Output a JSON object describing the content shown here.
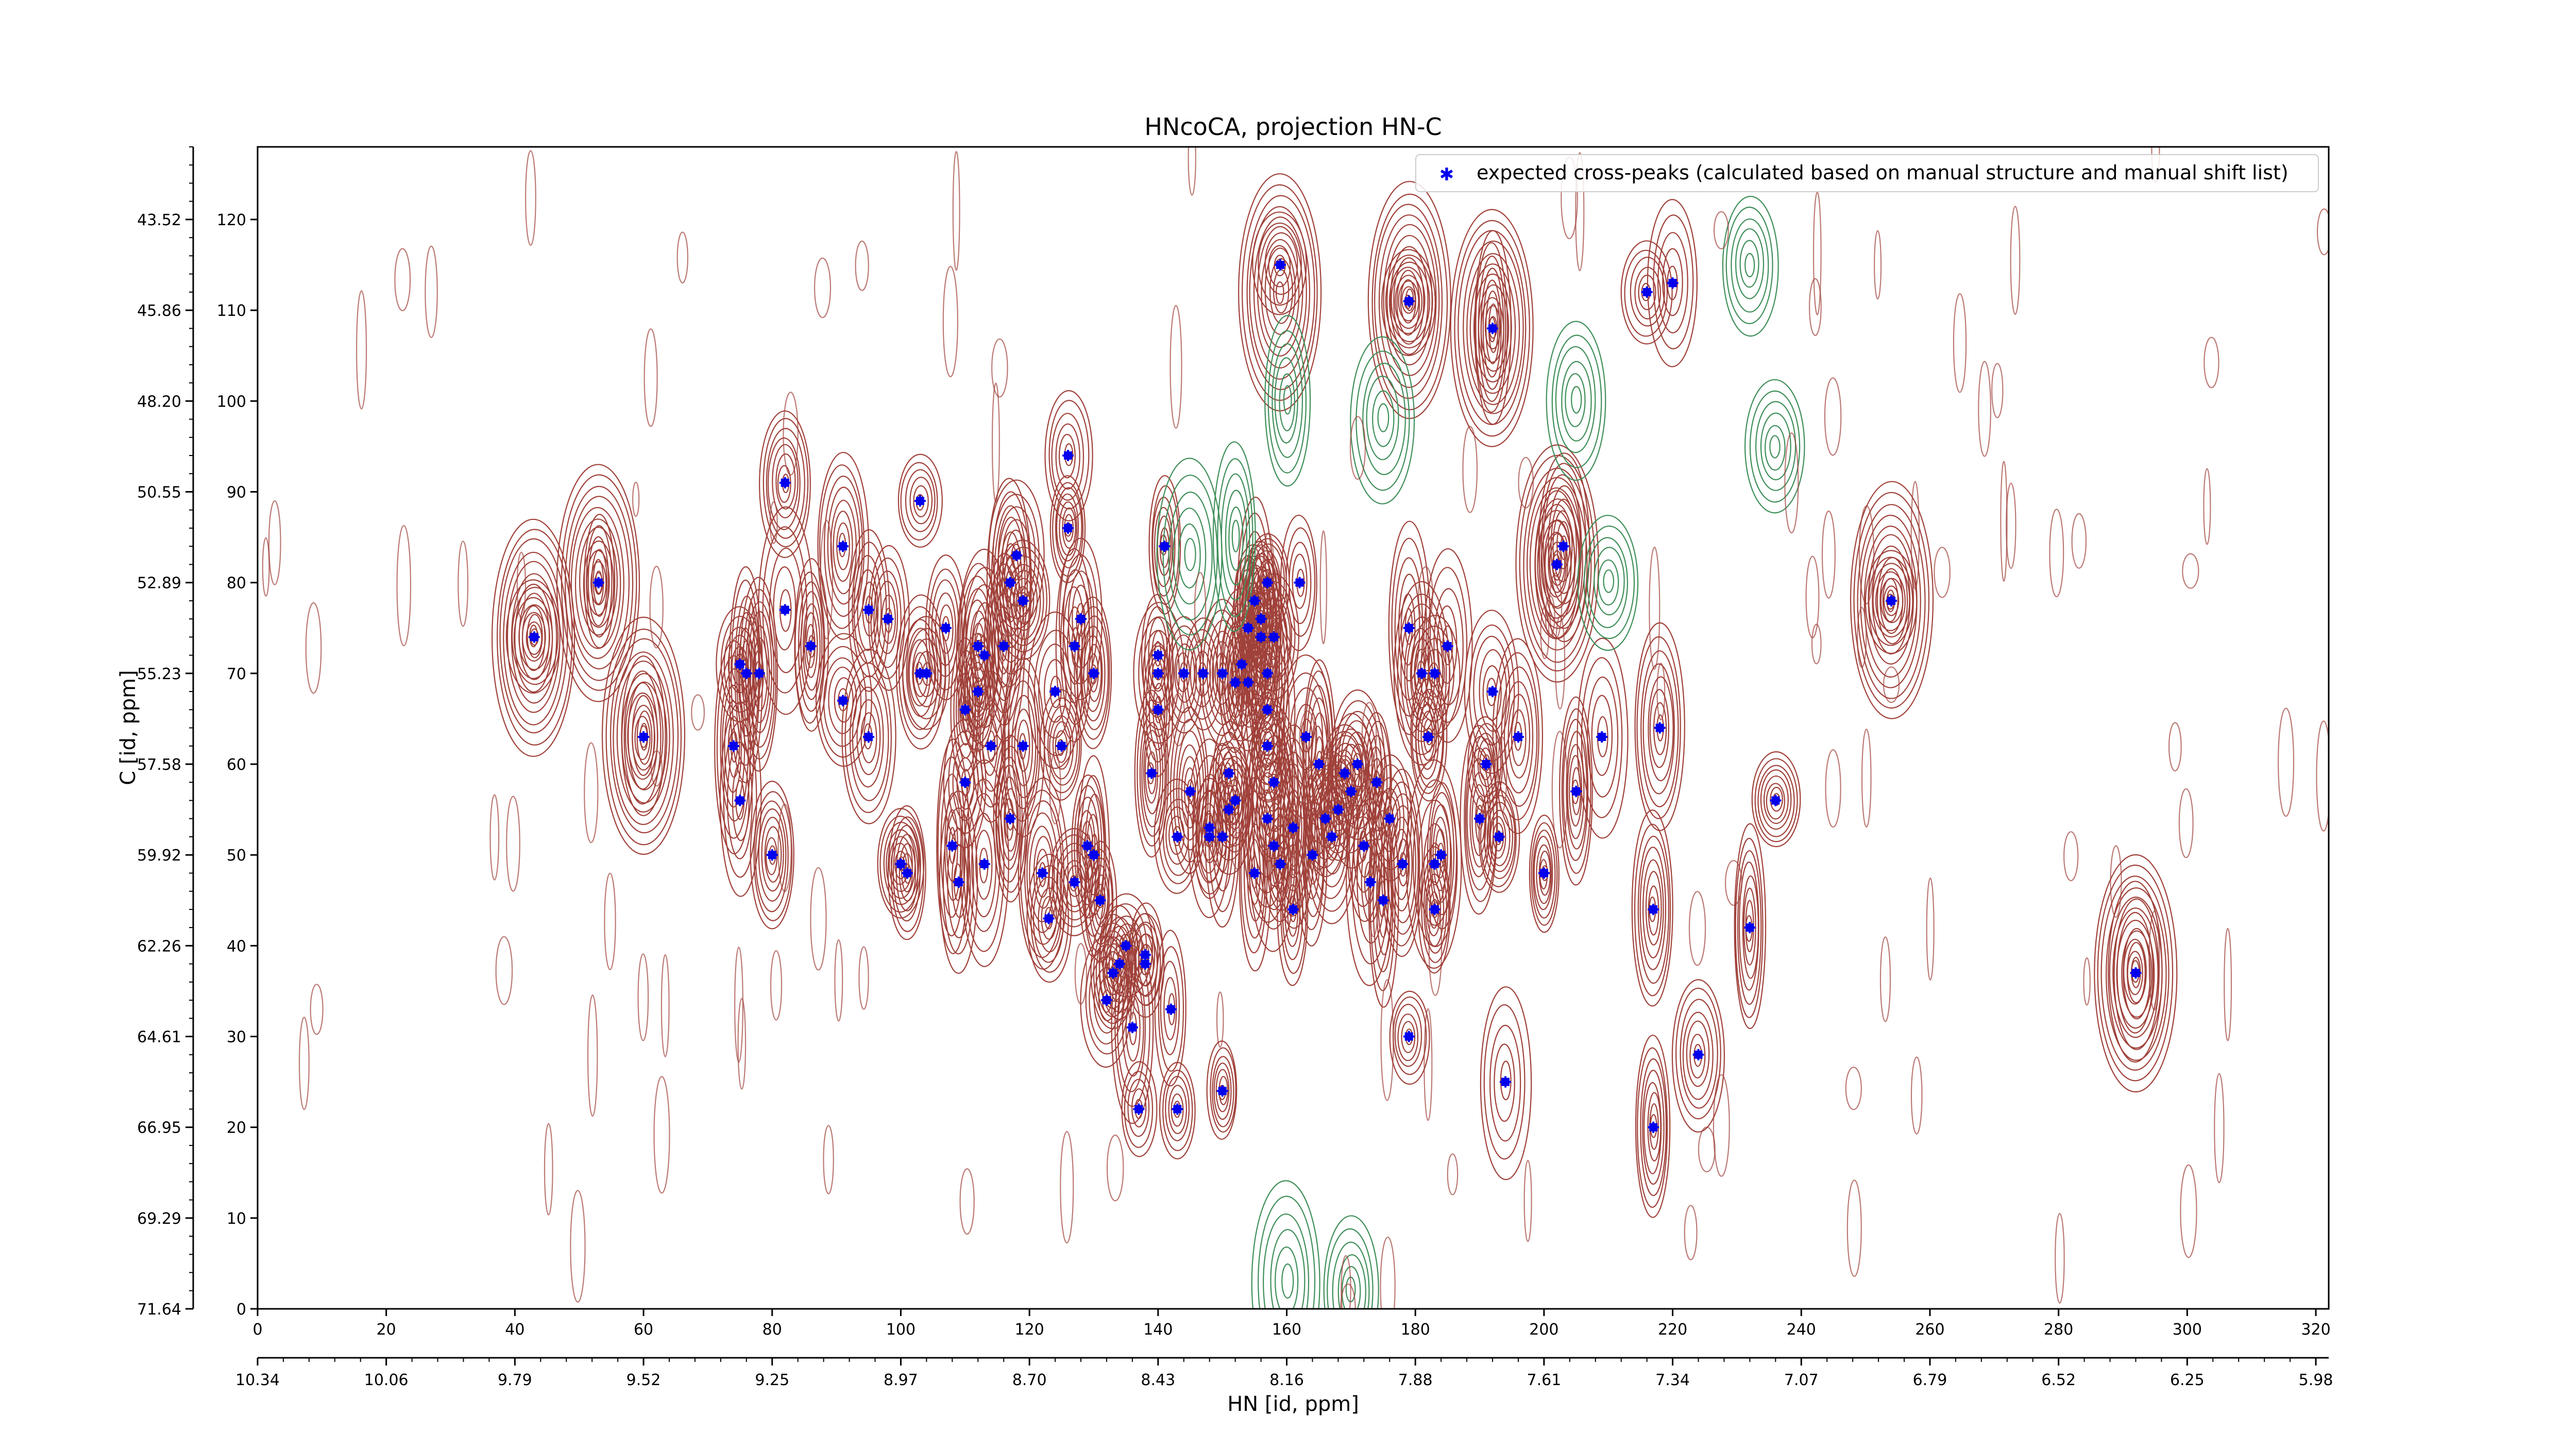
{
  "chart_data": {
    "type": "scatter",
    "title": "HNcoCA, projection HN-C",
    "legend": {
      "placement": "top-right",
      "entries": [
        "expected cross-peaks (calculated based on manual structure and manual shift list)"
      ]
    },
    "colors": {
      "marker": "#0000ee",
      "positive_contours": "#a0413a",
      "negative_contours": "#3f8f5a"
    },
    "x_axis": {
      "label": "HN [id, ppm]",
      "range": [
        0,
        322
      ],
      "ticks": [
        0,
        20,
        40,
        60,
        80,
        100,
        120,
        140,
        160,
        180,
        200,
        220,
        240,
        260,
        280,
        300,
        320
      ],
      "ppm_ticks": [
        "10.34",
        "10.06",
        "9.79",
        "9.52",
        "9.25",
        "8.97",
        "8.70",
        "8.43",
        "8.16",
        "7.88",
        "7.61",
        "7.34",
        "7.07",
        "6.79",
        "6.52",
        "6.25",
        "5.98"
      ]
    },
    "y_axis": {
      "label": "C [id, ppm]",
      "range": [
        0,
        128
      ],
      "ticks": [
        0,
        10,
        20,
        30,
        40,
        50,
        60,
        70,
        80,
        90,
        100,
        110,
        120
      ],
      "ppm_ticks": [
        "71.64",
        "69.29",
        "66.95",
        "64.61",
        "62.26",
        "59.92",
        "57.58",
        "55.23",
        "52.89",
        "50.55",
        "48.20",
        "45.86",
        "43.52"
      ]
    },
    "grid": false,
    "series": [
      {
        "name": "expected cross-peaks (calculated based on manual structure and manual shift list)",
        "points": [
          [
            43,
            74
          ],
          [
            53,
            80
          ],
          [
            60,
            63
          ],
          [
            74,
            62
          ],
          [
            75,
            56
          ],
          [
            75,
            71
          ],
          [
            76,
            70
          ],
          [
            78,
            70
          ],
          [
            80,
            50
          ],
          [
            82,
            77
          ],
          [
            82,
            91
          ],
          [
            86,
            73
          ],
          [
            91,
            67
          ],
          [
            91,
            84
          ],
          [
            95,
            77
          ],
          [
            95,
            63
          ],
          [
            98,
            76
          ],
          [
            100,
            49
          ],
          [
            101,
            48
          ],
          [
            103,
            70
          ],
          [
            103,
            89
          ],
          [
            104,
            70
          ],
          [
            107,
            75
          ],
          [
            108,
            51
          ],
          [
            109,
            47
          ],
          [
            110,
            58
          ],
          [
            110,
            66
          ],
          [
            112,
            68
          ],
          [
            112,
            73
          ],
          [
            113,
            72
          ],
          [
            113,
            49
          ],
          [
            114,
            62
          ],
          [
            116,
            73
          ],
          [
            117,
            54
          ],
          [
            117,
            80
          ],
          [
            118,
            83
          ],
          [
            119,
            78
          ],
          [
            119,
            62
          ],
          [
            122,
            48
          ],
          [
            123,
            43
          ],
          [
            124,
            68
          ],
          [
            125,
            62
          ],
          [
            126,
            86
          ],
          [
            126,
            94
          ],
          [
            127,
            47
          ],
          [
            127,
            73
          ],
          [
            128,
            76
          ],
          [
            129,
            51
          ],
          [
            130,
            50
          ],
          [
            130,
            70
          ],
          [
            131,
            45
          ],
          [
            132,
            34
          ],
          [
            133,
            37
          ],
          [
            134,
            38
          ],
          [
            135,
            40
          ],
          [
            136,
            31
          ],
          [
            137,
            22
          ],
          [
            138,
            38
          ],
          [
            138,
            39
          ],
          [
            139,
            59
          ],
          [
            140,
            72
          ],
          [
            140,
            70
          ],
          [
            140,
            66
          ],
          [
            141,
            84
          ],
          [
            142,
            33
          ],
          [
            143,
            52
          ],
          [
            143,
            22
          ],
          [
            144,
            70
          ],
          [
            145,
            57
          ],
          [
            147,
            70
          ],
          [
            148,
            53
          ],
          [
            148,
            52
          ],
          [
            150,
            24
          ],
          [
            150,
            52
          ],
          [
            150,
            70
          ],
          [
            151,
            59
          ],
          [
            151,
            55
          ],
          [
            152,
            56
          ],
          [
            152,
            69
          ],
          [
            153,
            71
          ],
          [
            154,
            69
          ],
          [
            154,
            75
          ],
          [
            155,
            78
          ],
          [
            155,
            48
          ],
          [
            155,
            78
          ],
          [
            156,
            76
          ],
          [
            156,
            74
          ],
          [
            157,
            70
          ],
          [
            157,
            66
          ],
          [
            157,
            54
          ],
          [
            157,
            62
          ],
          [
            157,
            80
          ],
          [
            158,
            58
          ],
          [
            158,
            74
          ],
          [
            158,
            51
          ],
          [
            159,
            115
          ],
          [
            159,
            49
          ],
          [
            161,
            44
          ],
          [
            161,
            53
          ],
          [
            162,
            80
          ],
          [
            163,
            63
          ],
          [
            164,
            50
          ],
          [
            165,
            60
          ],
          [
            166,
            54
          ],
          [
            167,
            52
          ],
          [
            168,
            55
          ],
          [
            169,
            59
          ],
          [
            170,
            57
          ],
          [
            171,
            60
          ],
          [
            172,
            51
          ],
          [
            173,
            47
          ],
          [
            174,
            58
          ],
          [
            175,
            45
          ],
          [
            176,
            54
          ],
          [
            178,
            49
          ],
          [
            179,
            75
          ],
          [
            179,
            111
          ],
          [
            179,
            30
          ],
          [
            181,
            70
          ],
          [
            182,
            63
          ],
          [
            183,
            70
          ],
          [
            183,
            49
          ],
          [
            183,
            44
          ],
          [
            184,
            50
          ],
          [
            185,
            73
          ],
          [
            190,
            54
          ],
          [
            191,
            60
          ],
          [
            192,
            68
          ],
          [
            192,
            108
          ],
          [
            193,
            52
          ],
          [
            194,
            25
          ],
          [
            196,
            63
          ],
          [
            200,
            48
          ],
          [
            202,
            82
          ],
          [
            203,
            84
          ],
          [
            205,
            57
          ],
          [
            209,
            63
          ],
          [
            216,
            112
          ],
          [
            217,
            20
          ],
          [
            217,
            44
          ],
          [
            218,
            64
          ],
          [
            220,
            113
          ],
          [
            224,
            28
          ],
          [
            232,
            42
          ],
          [
            236,
            56
          ],
          [
            254,
            78
          ],
          [
            292,
            37
          ]
        ]
      }
    ]
  }
}
